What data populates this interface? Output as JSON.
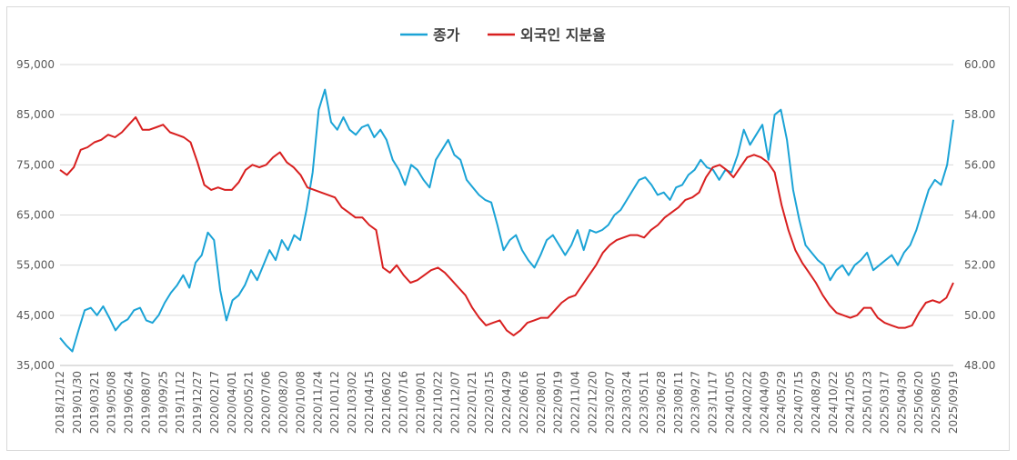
{
  "chart_data": {
    "type": "line",
    "title": "",
    "legend": {
      "placement": "top-center",
      "entries": [
        {
          "label": "종가",
          "color": "#1ba3d6"
        },
        {
          "label": "외국인 지분율",
          "color": "#d81f1f"
        }
      ]
    },
    "x_tick_labels": [
      "2018/12/12",
      "2019/01/30",
      "2019/03/21",
      "2019/05/08",
      "2019/06/24",
      "2019/08/07",
      "2019/09/25",
      "2019/11/12",
      "2019/12/27",
      "2020/02/17",
      "2020/04/01",
      "2020/05/21",
      "2020/07/06",
      "2020/08/20",
      "2020/10/08",
      "2020/11/24",
      "2021/01/12",
      "2021/03/02",
      "2021/04/15",
      "2021/06/02",
      "2021/07/16",
      "2021/09/01",
      "2021/10/22",
      "2021/12/07",
      "2022/01/21",
      "2022/03/15",
      "2022/04/29",
      "2022/06/16",
      "2022/08/01",
      "2022/09/19",
      "2022/11/04",
      "2022/12/20",
      "2023/02/07",
      "2023/03/24",
      "2023/05/11",
      "2023/06/28",
      "2023/08/11",
      "2023/09/27",
      "2023/11/17",
      "2024/01/05",
      "2024/02/22",
      "2024/04/09",
      "2024/05/29",
      "2024/07/15",
      "2024/08/29",
      "2024/10/22",
      "2024/12/05",
      "2025/01/23",
      "2025/03/17",
      "2025/04/30",
      "2025/06/20",
      "2025/08/05",
      "2025/09/19"
    ],
    "y_left": {
      "ticks": [
        "35,000",
        "45,000",
        "55,000",
        "65,000",
        "75,000",
        "85,000",
        "95,000"
      ],
      "range": [
        35000,
        95000
      ]
    },
    "y_right": {
      "ticks": [
        "48.00",
        "50.00",
        "52.00",
        "54.00",
        "56.00",
        "58.00",
        "60.00"
      ],
      "range": [
        48,
        60
      ]
    },
    "grid": true,
    "series": [
      {
        "name": "종가",
        "axis": "left",
        "color": "#1ba3d6",
        "values": [
          40500,
          39000,
          37800,
          42000,
          46000,
          46500,
          45000,
          46800,
          44500,
          42000,
          43500,
          44200,
          46000,
          46500,
          44000,
          43500,
          45000,
          47500,
          49500,
          51000,
          53000,
          50500,
          55500,
          57000,
          61500,
          60000,
          50000,
          44000,
          48000,
          49000,
          51000,
          54000,
          52000,
          55000,
          58000,
          56000,
          60000,
          58000,
          61000,
          60000,
          66000,
          73500,
          86000,
          90000,
          83500,
          82000,
          84500,
          82000,
          81000,
          82500,
          83000,
          80500,
          82000,
          80000,
          76000,
          74000,
          71000,
          75000,
          74000,
          72000,
          70500,
          76000,
          78000,
          80000,
          77000,
          76000,
          72000,
          70500,
          69000,
          68000,
          67500,
          63000,
          58000,
          60000,
          61000,
          58000,
          56000,
          54500,
          57000,
          60000,
          61000,
          59000,
          57000,
          59000,
          62000,
          58000,
          62000,
          61500,
          62000,
          63000,
          65000,
          66000,
          68000,
          70000,
          72000,
          72500,
          71000,
          69000,
          69500,
          68000,
          70500,
          71000,
          73000,
          74000,
          76000,
          74500,
          74000,
          72000,
          74000,
          73500,
          77000,
          82000,
          79000,
          81000,
          83000,
          76000,
          85000,
          86000,
          80000,
          70000,
          64000,
          59000,
          57500,
          56000,
          55000,
          52000,
          54000,
          55000,
          53000,
          55000,
          56000,
          57500,
          54000,
          55000,
          56000,
          57000,
          55000,
          57500,
          59000,
          62000,
          66000,
          70000,
          72000,
          71000,
          75000,
          84000
        ]
      },
      {
        "name": "외국인 지분율",
        "axis": "right",
        "color": "#d81f1f",
        "values": [
          55.8,
          55.6,
          55.9,
          56.6,
          56.7,
          56.9,
          57.0,
          57.2,
          57.1,
          57.3,
          57.6,
          57.9,
          57.4,
          57.4,
          57.5,
          57.6,
          57.3,
          57.2,
          57.1,
          56.9,
          56.1,
          55.2,
          55.0,
          55.1,
          55.0,
          55.0,
          55.3,
          55.8,
          56.0,
          55.9,
          56.0,
          56.3,
          56.5,
          56.1,
          55.9,
          55.6,
          55.1,
          55.0,
          54.9,
          54.8,
          54.7,
          54.3,
          54.1,
          53.9,
          53.9,
          53.6,
          53.4,
          51.9,
          51.7,
          52.0,
          51.6,
          51.3,
          51.4,
          51.6,
          51.8,
          51.9,
          51.7,
          51.4,
          51.1,
          50.8,
          50.3,
          49.9,
          49.6,
          49.7,
          49.8,
          49.4,
          49.2,
          49.4,
          49.7,
          49.8,
          49.9,
          49.9,
          50.2,
          50.5,
          50.7,
          50.8,
          51.2,
          51.6,
          52.0,
          52.5,
          52.8,
          53.0,
          53.1,
          53.2,
          53.2,
          53.1,
          53.4,
          53.6,
          53.9,
          54.1,
          54.3,
          54.6,
          54.7,
          54.9,
          55.5,
          55.9,
          56.0,
          55.8,
          55.5,
          55.9,
          56.3,
          56.4,
          56.3,
          56.1,
          55.7,
          54.4,
          53.4,
          52.6,
          52.1,
          51.7,
          51.3,
          50.8,
          50.4,
          50.1,
          50.0,
          49.9,
          50.0,
          50.3,
          50.3,
          49.9,
          49.7,
          49.6,
          49.5,
          49.5,
          49.6,
          50.1,
          50.5,
          50.6,
          50.5,
          50.7,
          51.3
        ]
      }
    ]
  }
}
